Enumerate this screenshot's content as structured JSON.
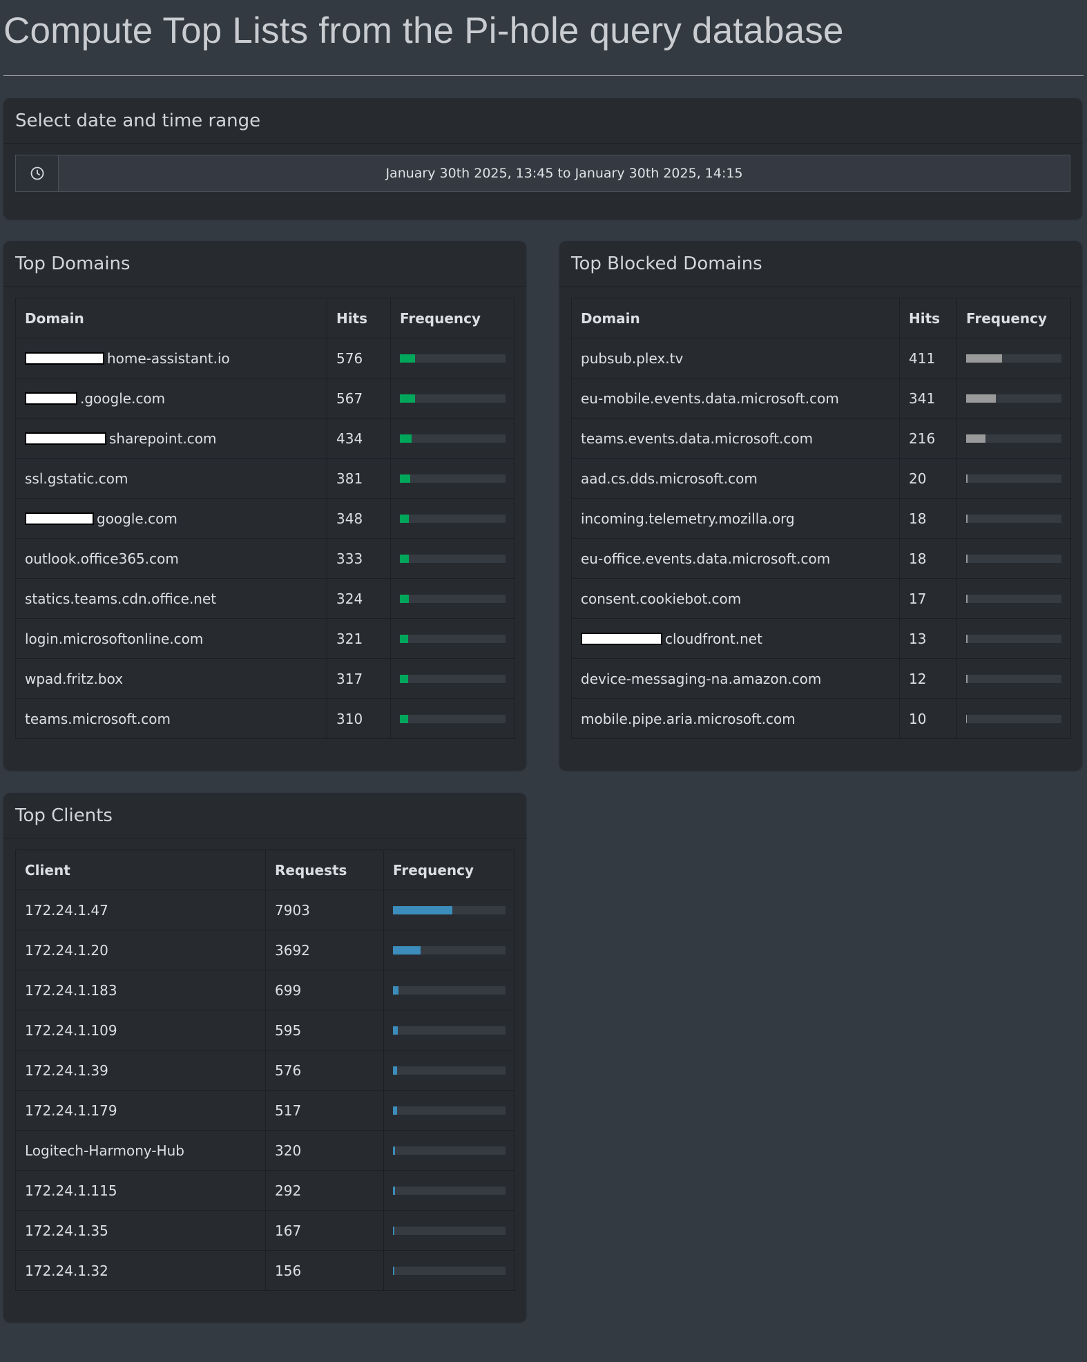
{
  "page": {
    "title": "Compute Top Lists from the Pi-hole query database"
  },
  "date_box": {
    "title": "Select date and time range",
    "icon": "clock-icon",
    "range": "January 30th 2025, 13:45 to January 30th 2025, 14:15"
  },
  "top_domains": {
    "title": "Top Domains",
    "headers": [
      "Domain",
      "Hits",
      "Frequency"
    ],
    "bar_color": "#00a65a",
    "rows": [
      {
        "domain": "home-assistant.io",
        "redacted": true,
        "hits": "576",
        "frequency": 0.145
      },
      {
        "domain": ".google.com",
        "redacted": true,
        "hits": "567",
        "frequency": 0.143
      },
      {
        "domain": "sharepoint.com",
        "redacted": true,
        "hits": "434",
        "frequency": 0.11
      },
      {
        "domain": "ssl.gstatic.com",
        "redacted": false,
        "hits": "381",
        "frequency": 0.096
      },
      {
        "domain": "google.com",
        "redacted": true,
        "hits": "348",
        "frequency": 0.088
      },
      {
        "domain": "outlook.office365.com",
        "redacted": false,
        "hits": "333",
        "frequency": 0.084
      },
      {
        "domain": "statics.teams.cdn.office.net",
        "redacted": false,
        "hits": "324",
        "frequency": 0.082
      },
      {
        "domain": "login.microsoftonline.com",
        "redacted": false,
        "hits": "321",
        "frequency": 0.081
      },
      {
        "domain": "wpad.fritz.box",
        "redacted": false,
        "hits": "317",
        "frequency": 0.08
      },
      {
        "domain": "teams.microsoft.com",
        "redacted": false,
        "hits": "310",
        "frequency": 0.078
      }
    ]
  },
  "top_blocked": {
    "title": "Top Blocked Domains",
    "headers": [
      "Domain",
      "Hits",
      "Frequency"
    ],
    "bar_color": "#9a9a9a",
    "rows": [
      {
        "domain": "pubsub.plex.tv",
        "redacted": false,
        "hits": "411",
        "frequency": 0.38
      },
      {
        "domain": "eu-mobile.events.data.microsoft.com",
        "redacted": false,
        "hits": "341",
        "frequency": 0.315
      },
      {
        "domain": "teams.events.data.microsoft.com",
        "redacted": false,
        "hits": "216",
        "frequency": 0.2
      },
      {
        "domain": "aad.cs.dds.microsoft.com",
        "redacted": false,
        "hits": "20",
        "frequency": 0.018
      },
      {
        "domain": "incoming.telemetry.mozilla.org",
        "redacted": false,
        "hits": "18",
        "frequency": 0.017
      },
      {
        "domain": "eu-office.events.data.microsoft.com",
        "redacted": false,
        "hits": "18",
        "frequency": 0.017
      },
      {
        "domain": "consent.cookiebot.com",
        "redacted": false,
        "hits": "17",
        "frequency": 0.016
      },
      {
        "domain": "cloudfront.net",
        "redacted": true,
        "hits": "13",
        "frequency": 0.012
      },
      {
        "domain": "device-messaging-na.amazon.com",
        "redacted": false,
        "hits": "12",
        "frequency": 0.011
      },
      {
        "domain": "mobile.pipe.aria.microsoft.com",
        "redacted": false,
        "hits": "10",
        "frequency": 0.009
      }
    ]
  },
  "top_clients": {
    "title": "Top Clients",
    "headers": [
      "Client",
      "Requests",
      "Frequency"
    ],
    "bar_color": "#3c8dbc",
    "rows": [
      {
        "client": "172.24.1.47",
        "requests": "7903",
        "frequency": 0.53
      },
      {
        "client": "172.24.1.20",
        "requests": "3692",
        "frequency": 0.248
      },
      {
        "client": "172.24.1.183",
        "requests": "699",
        "frequency": 0.047
      },
      {
        "client": "172.24.1.109",
        "requests": "595",
        "frequency": 0.04
      },
      {
        "client": "172.24.1.39",
        "requests": "576",
        "frequency": 0.039
      },
      {
        "client": "172.24.1.179",
        "requests": "517",
        "frequency": 0.035
      },
      {
        "client": "Logitech-Harmony-Hub",
        "requests": "320",
        "frequency": 0.021
      },
      {
        "client": "172.24.1.115",
        "requests": "292",
        "frequency": 0.02
      },
      {
        "client": "172.24.1.35",
        "requests": "167",
        "frequency": 0.011
      },
      {
        "client": "172.24.1.32",
        "requests": "156",
        "frequency": 0.01
      }
    ]
  }
}
